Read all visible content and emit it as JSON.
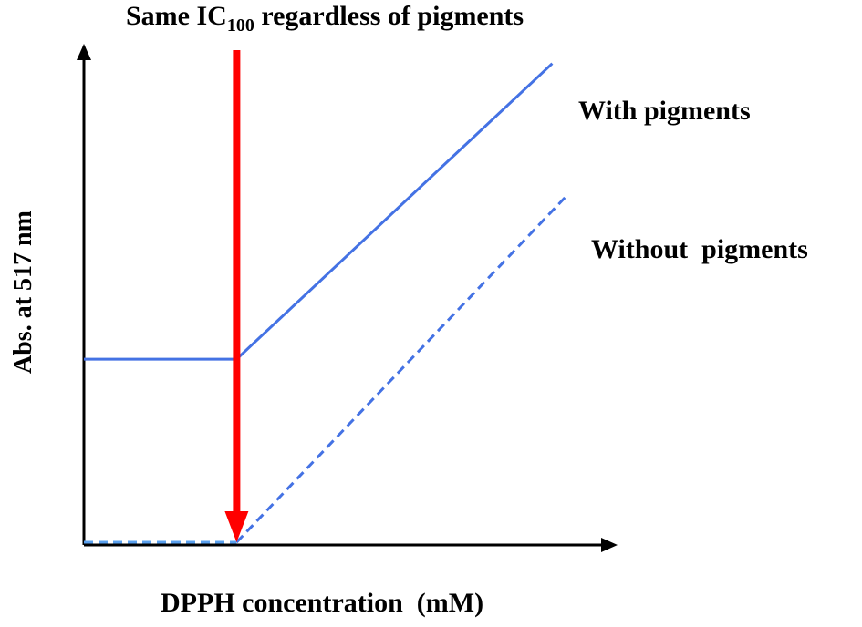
{
  "chart_data": {
    "type": "line",
    "title": {
      "prefix": "Same IC",
      "subscript": "100",
      "suffix": " regardless of pigments"
    },
    "xlabel": "DPPH concentration  (mM)",
    "ylabel": "Abs. at 517 nm",
    "xlim": [
      0,
      10
    ],
    "ylim": [
      0,
      10
    ],
    "series": [
      {
        "name": "With pigments",
        "style": "solid",
        "color": "#4472e4",
        "x": [
          0,
          3,
          9.2
        ],
        "y": [
          3.9,
          3.9,
          10.2
        ]
      },
      {
        "name": "Without  pigments",
        "style": "dashed",
        "color": "#4472e4",
        "x": [
          3,
          9.5
        ],
        "y": [
          0,
          7.4
        ]
      },
      {
        "name": "",
        "style": "dashed",
        "color": "#5aa0ee",
        "x": [
          0,
          3
        ],
        "y": [
          0,
          0
        ]
      }
    ],
    "annotations": [
      {
        "type": "arrow",
        "color": "#ff0000",
        "x": 3,
        "y_from": 12,
        "y_to": 0
      }
    ]
  }
}
